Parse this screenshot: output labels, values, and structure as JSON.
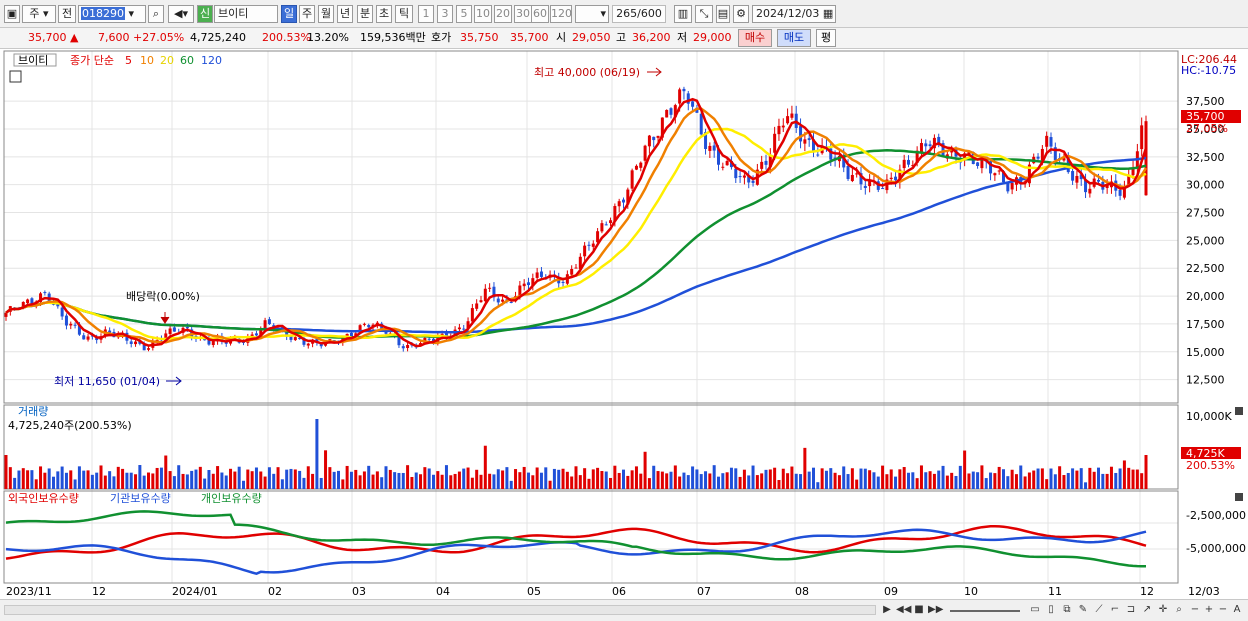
{
  "toolbar": {
    "period_code": "주",
    "prev_label": "전",
    "code": "018290",
    "market_badge": "신",
    "stock_name": "브이티",
    "tabs": [
      "일",
      "주",
      "월",
      "년",
      "분",
      "초",
      "틱"
    ],
    "active_tab": "일",
    "intervals": [
      "1",
      "3",
      "5",
      "10",
      "20",
      "30",
      "60",
      "120"
    ],
    "count": "265",
    "count_max": "/600",
    "date": "2024/12/03"
  },
  "quote": {
    "price": "35,700",
    "change": "7,600",
    "change_pct": "+27.05%",
    "volume": "4,725,240",
    "vol_ratio": "200.53%",
    "turnover": "13.20%",
    "amount": "159,536백만",
    "ask_label": "호가",
    "ask1": "35,750",
    "ask2": "35,700",
    "open_label": "시",
    "open": "29,050",
    "high_label": "고",
    "high": "36,200",
    "low_label": "저",
    "low": "29,000",
    "buy_label": "매수",
    "sell_label": "매도",
    "avg_label": "평"
  },
  "chart": {
    "legend_name": "브이티",
    "legend_series": "종가 단순",
    "ma_labels": [
      "5",
      "10",
      "20",
      "60",
      "120"
    ],
    "ma_colors": [
      "#e00000",
      "#f08000",
      "#ffee00",
      "#109030",
      "#2050d8"
    ],
    "lc": "LC:206.44",
    "hc": "HC:-10.75",
    "high_annot": "최고 40,000 (06/19)",
    "low_annot": "최저 11,650 (01/04)",
    "dividend_annot": "배당락(0.00%)",
    "price_ticks": [
      "37,500",
      "35,000",
      "32,500",
      "30,000",
      "27,500",
      "25,000",
      "22,500",
      "20,000",
      "17,500",
      "15,000",
      "12,500"
    ],
    "price_tag": "35,700",
    "price_tag_pct": "27.05%",
    "volume_title": "거래량",
    "volume_value": "4,725,240주(200.53%)",
    "volume_tick": "10,000K",
    "volume_tag": "4,725K",
    "volume_tag_pct": "200.53%",
    "holders_legend": [
      "외국인보유수량",
      "기관보유수량",
      "개인보유수량"
    ],
    "holders_colors": [
      "#e00000",
      "#2050d8",
      "#109030"
    ],
    "holder_ticks": [
      "-2,500,000",
      "-5,000,000"
    ],
    "x_labels": [
      "2023/11",
      "12",
      "2024/01",
      "02",
      "03",
      "04",
      "05",
      "06",
      "07",
      "08",
      "09",
      "10",
      "11",
      "12"
    ],
    "x_end": "12/03"
  },
  "chart_data": {
    "type": "candlestick",
    "title": "브이티",
    "y_range": [
      11650,
      40000
    ],
    "x_range": [
      "2023/11",
      "2024/12/03"
    ],
    "series": [
      {
        "name": "종가",
        "values": [
          18500,
          19200,
          20500,
          17500,
          16200,
          16800,
          16000,
          15500,
          16500,
          17000,
          16000,
          15800,
          16200,
          17500,
          16500,
          16000,
          15500,
          16500,
          17500,
          16800,
          15500,
          15800,
          16500,
          17500,
          20500,
          19500,
          21000,
          22000,
          21500,
          24000,
          27000,
          29000,
          33500,
          36500,
          38000,
          34000,
          31500,
          30000,
          32500,
          36000,
          34000,
          33000,
          31000,
          30500,
          29500,
          32000,
          34000,
          32500,
          33000,
          31500,
          30000,
          31000,
          33500,
          32000,
          29500,
          30000,
          29800,
          35700
        ]
      }
    ],
    "annotations": {
      "high": "40,000 (06/19)",
      "low": "11,650 (01/04)"
    },
    "last": {
      "open": 29050,
      "high": 36200,
      "low": 29000,
      "close": 35700,
      "volume": 4725240
    }
  }
}
